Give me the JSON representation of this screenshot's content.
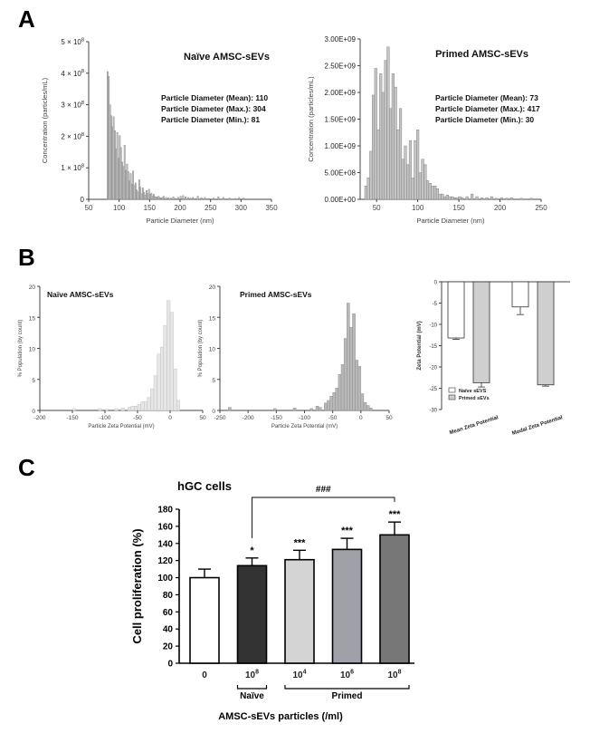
{
  "panels": {
    "A": "A",
    "B": "B",
    "C": "C"
  },
  "chart_data": [
    {
      "id": "a1",
      "type": "bar",
      "title": "Naïve AMSC-sEVs",
      "xlabel": "Particle Diameter (nm)",
      "ylabel": "Concentration (particles/mL)",
      "xlim": [
        50,
        350
      ],
      "ylim": [
        0,
        500000000
      ],
      "xticks": [
        "50",
        "100",
        "150",
        "200",
        "250",
        "300",
        "350"
      ],
      "yticks": [
        {
          "base": "0",
          "exp": ""
        },
        {
          "base": "1 × 10",
          "exp": "8"
        },
        {
          "base": "2 × 10",
          "exp": "8"
        },
        {
          "base": "3 × 10",
          "exp": "8"
        },
        {
          "base": "4 × 10",
          "exp": "8"
        },
        {
          "base": "5 × 10",
          "exp": "8"
        }
      ],
      "annotations": [
        "Particle Diameter (Mean): 110",
        "Particle Diameter (Max.): 304",
        "Particle Diameter (Min.): 81"
      ],
      "bar_width": 2,
      "x": [
        81,
        83,
        85,
        87,
        89,
        91,
        93,
        95,
        97,
        99,
        101,
        103,
        105,
        107,
        109,
        111,
        113,
        115,
        117,
        119,
        121,
        123,
        125,
        127,
        129,
        131,
        133,
        135,
        137,
        139,
        141,
        143,
        145,
        147,
        149,
        151,
        153,
        155,
        157,
        159,
        161,
        163,
        165,
        167,
        169,
        171,
        173,
        177,
        181,
        185,
        189,
        193,
        197,
        201,
        205,
        209,
        213,
        217,
        221,
        225,
        229,
        235,
        241,
        247,
        255,
        263,
        271,
        281,
        291,
        297,
        304
      ],
      "values": [
        405000000,
        390000000,
        300000000,
        265000000,
        230000000,
        262000000,
        218000000,
        160000000,
        212000000,
        130000000,
        202000000,
        164000000,
        118000000,
        104000000,
        172000000,
        92000000,
        112000000,
        88000000,
        58000000,
        82000000,
        48000000,
        90000000,
        44000000,
        52000000,
        30000000,
        24000000,
        62000000,
        38000000,
        18000000,
        36000000,
        22000000,
        14000000,
        28000000,
        18000000,
        32000000,
        16000000,
        20000000,
        10000000,
        16000000,
        8000000,
        8000000,
        6000000,
        10000000,
        5000000,
        4000000,
        6000000,
        10000000,
        6000000,
        5000000,
        4000000,
        8000000,
        3000000,
        6000000,
        10000000,
        12000000,
        8000000,
        6000000,
        4000000,
        6000000,
        3000000,
        10000000,
        5000000,
        6000000,
        3000000,
        4000000,
        8000000,
        6000000,
        4000000,
        3000000,
        6000000,
        4000000
      ]
    },
    {
      "id": "a2",
      "type": "bar",
      "title": "Primed AMSC-sEVs",
      "xlabel": "Particle Diameter (nm)",
      "ylabel": "Concentration (particles/mL)",
      "xlim": [
        30,
        250
      ],
      "ylim": [
        0,
        3000000000
      ],
      "xticks": [
        "50",
        "100",
        "150",
        "200",
        "250"
      ],
      "yticks": [
        {
          "base": "0.00E+00",
          "exp": ""
        },
        {
          "base": "5.00E+08",
          "exp": ""
        },
        {
          "base": "1.00E+09",
          "exp": ""
        },
        {
          "base": "1.50E+09",
          "exp": ""
        },
        {
          "base": "2.00E+09",
          "exp": ""
        },
        {
          "base": "2.50E+09",
          "exp": ""
        },
        {
          "base": "3.00E+09",
          "exp": ""
        }
      ],
      "annotations": [
        "Particle Diameter (Mean): 73",
        "Particle Diameter (Max.): 417",
        "Particle Diameter (Min.): 30"
      ],
      "bar_width": 3,
      "x": [
        37,
        40,
        43,
        46,
        49,
        52,
        55,
        58,
        61,
        64,
        67,
        70,
        73,
        76,
        79,
        82,
        85,
        88,
        91,
        94,
        97,
        100,
        103,
        106,
        109,
        112,
        115,
        118,
        121,
        124,
        127,
        130,
        133,
        136,
        139,
        142,
        145,
        148,
        151,
        154,
        160,
        166,
        172,
        178,
        184,
        190,
        196,
        202,
        208,
        214,
        226,
        238
      ],
      "values": [
        250000000,
        400000000,
        900000000,
        1950000000,
        2450000000,
        1300000000,
        2350000000,
        2000000000,
        2600000000,
        2850000000,
        1700000000,
        2350000000,
        2100000000,
        1300000000,
        1700000000,
        750000000,
        1000000000,
        650000000,
        1100000000,
        400000000,
        1100000000,
        1300000000,
        500000000,
        750000000,
        650000000,
        350000000,
        300000000,
        250000000,
        250000000,
        200000000,
        100000000,
        100000000,
        50000000,
        80000000,
        50000000,
        50000000,
        30000000,
        30000000,
        50000000,
        30000000,
        50000000,
        100000000,
        50000000,
        30000000,
        30000000,
        50000000,
        20000000,
        30000000,
        20000000,
        30000000,
        20000000,
        20000000
      ]
    },
    {
      "id": "b1",
      "type": "bar",
      "title": "Naïve AMSC-sEVs",
      "xlabel": "Particle Zeta Potential (mV)",
      "ylabel": "% Population (by count)",
      "xlim": [
        -200,
        50
      ],
      "ylim": [
        0,
        20
      ],
      "xticks": [
        "-200",
        "-150",
        "-100",
        "-50",
        "0",
        "50"
      ],
      "yticks": [
        "0",
        "5",
        "10",
        "15",
        "20"
      ],
      "bar_width": 5,
      "x": [
        -147.5,
        -107.5,
        -97.5,
        -82.5,
        -72.5,
        -62.5,
        -57.5,
        -52.5,
        -47.5,
        -42.5,
        -37.5,
        -32.5,
        -27.5,
        -22.5,
        -17.5,
        -12.5,
        -7.5,
        -2.5,
        2.5,
        7.5,
        12.5
      ],
      "values": [
        0.3,
        0.3,
        0.2,
        0.3,
        0.4,
        0.5,
        0.7,
        0.7,
        1.0,
        1.4,
        1.4,
        2.1,
        3.5,
        5.6,
        9.1,
        10.2,
        13.7,
        17.7,
        15.8,
        6.7,
        1.6
      ]
    },
    {
      "id": "b2",
      "type": "bar",
      "title": "Primed AMSC-sEVs",
      "xlabel": "Particle Zeta Potential (mV)",
      "ylabel": "% Population (by count)",
      "xlim": [
        -250,
        50
      ],
      "ylim": [
        0,
        20
      ],
      "xticks": [
        "-250",
        "-200",
        "-150",
        "-100",
        "-50",
        "0",
        "50"
      ],
      "yticks": [
        "0",
        "5",
        "10",
        "15",
        "20"
      ],
      "bar_width": 5,
      "x": [
        -232.5,
        -152.5,
        -117.5,
        -87.5,
        -77.5,
        -72.5,
        -62.5,
        -57.5,
        -52.5,
        -47.5,
        -42.5,
        -37.5,
        -32.5,
        -27.5,
        -22.5,
        -17.5,
        -12.5,
        -7.5,
        -2.5,
        2.5,
        7.5,
        12.5,
        17.5
      ],
      "values": [
        0.5,
        0.3,
        0.4,
        0.3,
        0.7,
        0.5,
        1.2,
        1.6,
        2.3,
        2.9,
        3.6,
        5.8,
        7.4,
        11.6,
        17.3,
        13.4,
        15.6,
        8.1,
        7.1,
        2.7,
        1.3,
        0.8,
        0.4
      ]
    },
    {
      "id": "b3",
      "type": "bar",
      "ylabel": "Zeta Potential (mV)",
      "ylim": [
        -30,
        0
      ],
      "yticks": [
        "-30",
        "-25",
        "-20",
        "-15",
        "-10",
        "-5",
        "0"
      ],
      "categories": [
        "Mean Zeta Potential",
        "Modal Zeta Potential"
      ],
      "series": [
        {
          "name": "Naïve sEVS",
          "color": "#ffffff",
          "values": [
            -13.2,
            -5.9
          ],
          "errors": [
            0.3,
            1.8
          ]
        },
        {
          "name": "Primed sEVs",
          "color": "#cfcfcf",
          "values": [
            -23.7,
            -24.2
          ],
          "errors": [
            1.0,
            0.3
          ]
        }
      ]
    },
    {
      "id": "c",
      "type": "bar",
      "title": "hGC cells",
      "xlabel": "AMSC-sEVs particles (/ml)",
      "ylabel": "Cell proliferation (%)",
      "ylim": [
        0,
        180
      ],
      "yticks": [
        "0",
        "20",
        "40",
        "60",
        "80",
        "100",
        "120",
        "140",
        "160",
        "180"
      ],
      "categories": [
        {
          "base": "0",
          "exp": ""
        },
        {
          "base": "10",
          "exp": "8"
        },
        {
          "base": "10",
          "exp": "4"
        },
        {
          "base": "10",
          "exp": "6"
        },
        {
          "base": "10",
          "exp": "8"
        }
      ],
      "values": [
        100,
        114,
        121,
        133,
        150
      ],
      "errors": [
        10,
        9,
        11,
        13,
        15
      ],
      "colors": [
        "#ffffff",
        "#333333",
        "#d4d4d4",
        "#a0a0a8",
        "#777777"
      ],
      "significance": [
        "",
        "*",
        "***",
        "***",
        "***"
      ],
      "groups": [
        {
          "label": "Naïve",
          "from": 1,
          "to": 1
        },
        {
          "label": "Primed",
          "from": 2,
          "to": 4
        }
      ],
      "comparison": {
        "label": "###",
        "from": 1,
        "to": 4
      }
    }
  ]
}
